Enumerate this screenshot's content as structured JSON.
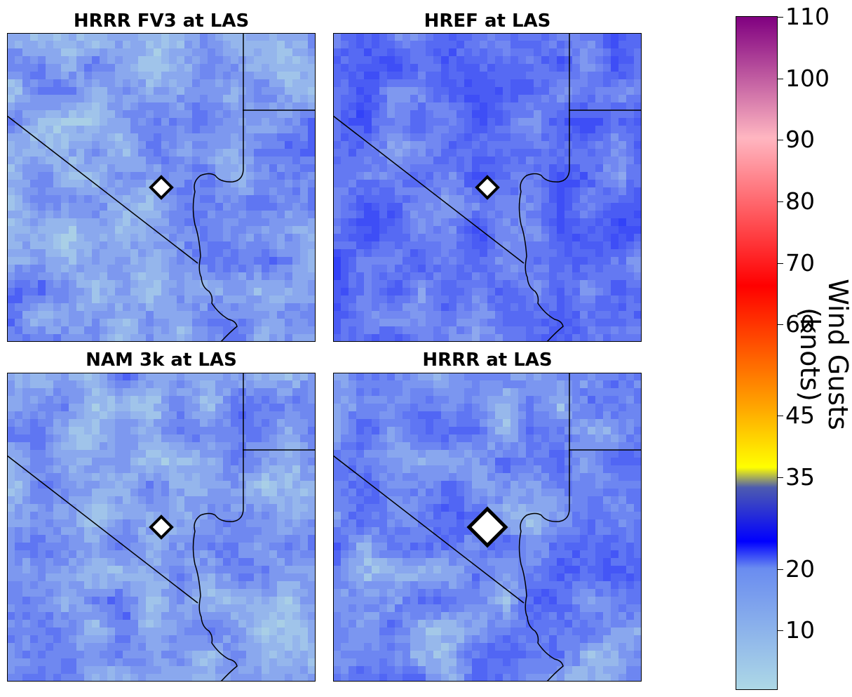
{
  "panels": [
    {
      "id": "hrrr-fv3",
      "title": "HRRR FV3 at LAS",
      "tone": "light",
      "marker_size": "small"
    },
    {
      "id": "href",
      "title": "HREF at LAS",
      "tone": "dark",
      "marker_size": "small"
    },
    {
      "id": "nam-3k",
      "title": "NAM 3k at LAS",
      "tone": "light",
      "marker_size": "small"
    },
    {
      "id": "hrrr",
      "title": "HRRR at LAS",
      "tone": "medium",
      "marker_size": "large"
    }
  ],
  "colorbar": {
    "title": "Wind Gusts (knots)",
    "ticks": [
      {
        "value": 10,
        "label": "10"
      },
      {
        "value": 20,
        "label": "20"
      },
      {
        "value": 35,
        "label": "35"
      },
      {
        "value": 45,
        "label": "45"
      },
      {
        "value": 60,
        "label": "60"
      },
      {
        "value": 70,
        "label": "70"
      },
      {
        "value": 80,
        "label": "80"
      },
      {
        "value": 90,
        "label": "90"
      },
      {
        "value": 100,
        "label": "100"
      },
      {
        "value": 110,
        "label": "110"
      }
    ],
    "colors": {
      "low": "#add8e6",
      "blue": "#0000ff",
      "yellow": "#ffff00",
      "orange": "#ffa500",
      "red": "#ff0000",
      "pink": "#ffb6c1",
      "purple": "#800080"
    }
  },
  "marker": {
    "shape": "diamond",
    "fill": "#ffffff",
    "stroke": "#000000"
  }
}
